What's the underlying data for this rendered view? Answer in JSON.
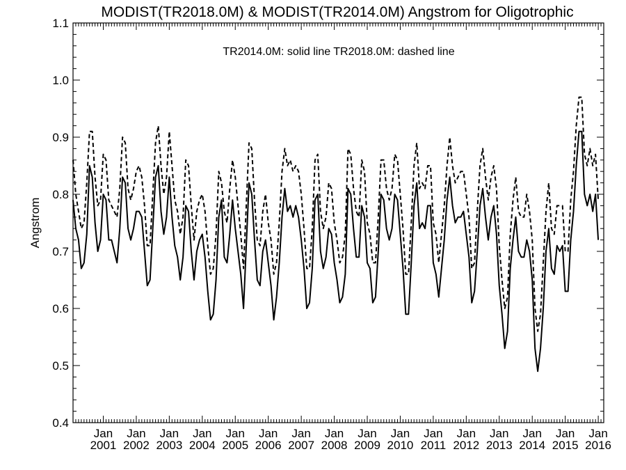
{
  "chart_data": {
    "type": "line",
    "title": "MODIST(TR2018.0M) & MODIST(TR2014.0M)  Angstrom for Oligotrophic",
    "annotation": "TR2014.0M: solid line   TR2018.0M: dashed line",
    "xlabel": "",
    "ylabel": "Angstrom",
    "ylim": [
      0.4,
      1.1
    ],
    "yticks": [
      "0.4",
      "0.5",
      "0.6",
      "0.7",
      "0.8",
      "0.9",
      "1.0",
      "1.1"
    ],
    "xlim": [
      "2000-02",
      "2016-03"
    ],
    "xtick_month": "Jan",
    "xtick_years": [
      "2001",
      "2002",
      "2003",
      "2004",
      "2005",
      "2006",
      "2007",
      "2008",
      "2009",
      "2010",
      "2011",
      "2012",
      "2013",
      "2014",
      "2015",
      "2016"
    ],
    "grid": false,
    "series": [
      {
        "name": "TR2014.0M",
        "style": "solid",
        "color": "#000000",
        "x_start": "2000-02",
        "values": [
          0.79,
          0.74,
          0.72,
          0.67,
          0.68,
          0.73,
          0.85,
          0.83,
          0.75,
          0.7,
          0.72,
          0.8,
          0.79,
          0.72,
          0.72,
          0.7,
          0.68,
          0.74,
          0.83,
          0.82,
          0.74,
          0.72,
          0.74,
          0.77,
          0.77,
          0.76,
          0.7,
          0.64,
          0.65,
          0.74,
          0.83,
          0.85,
          0.77,
          0.73,
          0.76,
          0.83,
          0.76,
          0.71,
          0.69,
          0.65,
          0.69,
          0.78,
          0.77,
          0.7,
          0.65,
          0.7,
          0.72,
          0.73,
          0.69,
          0.63,
          0.58,
          0.59,
          0.65,
          0.76,
          0.79,
          0.69,
          0.68,
          0.73,
          0.79,
          0.74,
          0.7,
          0.66,
          0.6,
          0.71,
          0.82,
          0.8,
          0.72,
          0.65,
          0.64,
          0.7,
          0.72,
          0.68,
          0.64,
          0.58,
          0.62,
          0.68,
          0.76,
          0.81,
          0.77,
          0.78,
          0.76,
          0.78,
          0.76,
          0.72,
          0.67,
          0.6,
          0.61,
          0.67,
          0.79,
          0.8,
          0.7,
          0.67,
          0.69,
          0.74,
          0.73,
          0.68,
          0.65,
          0.61,
          0.62,
          0.66,
          0.81,
          0.8,
          0.74,
          0.69,
          0.69,
          0.78,
          0.76,
          0.68,
          0.67,
          0.61,
          0.62,
          0.7,
          0.8,
          0.79,
          0.74,
          0.72,
          0.74,
          0.8,
          0.79,
          0.73,
          0.67,
          0.59,
          0.59,
          0.68,
          0.78,
          0.82,
          0.74,
          0.75,
          0.74,
          0.78,
          0.78,
          0.68,
          0.66,
          0.62,
          0.67,
          0.72,
          0.79,
          0.83,
          0.78,
          0.75,
          0.76,
          0.76,
          0.77,
          0.73,
          0.69,
          0.61,
          0.63,
          0.7,
          0.78,
          0.81,
          0.76,
          0.72,
          0.76,
          0.78,
          0.73,
          0.64,
          0.59,
          0.53,
          0.56,
          0.67,
          0.72,
          0.76,
          0.7,
          0.69,
          0.69,
          0.72,
          0.7,
          0.65,
          0.53,
          0.49,
          0.53,
          0.6,
          0.7,
          0.74,
          0.67,
          0.66,
          0.71,
          0.7,
          0.71,
          0.63,
          0.63,
          0.72,
          0.77,
          0.85,
          0.91,
          0.91,
          0.8,
          0.78,
          0.8,
          0.77,
          0.8,
          0.72
        ]
      },
      {
        "name": "TR2018.0M",
        "style": "dashed",
        "color": "#000000",
        "x_start": "2000-02",
        "values": [
          0.86,
          0.8,
          0.77,
          0.74,
          0.75,
          0.82,
          0.91,
          0.91,
          0.83,
          0.78,
          0.79,
          0.87,
          0.86,
          0.79,
          0.78,
          0.77,
          0.76,
          0.81,
          0.9,
          0.89,
          0.81,
          0.79,
          0.81,
          0.84,
          0.85,
          0.83,
          0.78,
          0.71,
          0.71,
          0.8,
          0.89,
          0.92,
          0.85,
          0.8,
          0.83,
          0.91,
          0.85,
          0.79,
          0.77,
          0.73,
          0.76,
          0.86,
          0.85,
          0.78,
          0.72,
          0.77,
          0.79,
          0.8,
          0.77,
          0.71,
          0.66,
          0.67,
          0.73,
          0.84,
          0.82,
          0.77,
          0.75,
          0.81,
          0.86,
          0.83,
          0.78,
          0.73,
          0.67,
          0.78,
          0.89,
          0.88,
          0.79,
          0.72,
          0.71,
          0.77,
          0.8,
          0.75,
          0.72,
          0.66,
          0.68,
          0.75,
          0.84,
          0.88,
          0.85,
          0.86,
          0.84,
          0.85,
          0.84,
          0.8,
          0.74,
          0.67,
          0.67,
          0.74,
          0.86,
          0.87,
          0.77,
          0.74,
          0.76,
          0.82,
          0.81,
          0.75,
          0.72,
          0.68,
          0.69,
          0.73,
          0.88,
          0.87,
          0.81,
          0.77,
          0.76,
          0.86,
          0.84,
          0.75,
          0.73,
          0.68,
          0.68,
          0.76,
          0.86,
          0.86,
          0.81,
          0.79,
          0.81,
          0.87,
          0.86,
          0.8,
          0.74,
          0.66,
          0.66,
          0.75,
          0.85,
          0.89,
          0.81,
          0.82,
          0.81,
          0.85,
          0.85,
          0.75,
          0.73,
          0.68,
          0.73,
          0.78,
          0.85,
          0.9,
          0.85,
          0.82,
          0.83,
          0.84,
          0.84,
          0.8,
          0.76,
          0.67,
          0.68,
          0.77,
          0.85,
          0.88,
          0.83,
          0.79,
          0.83,
          0.85,
          0.81,
          0.71,
          0.65,
          0.6,
          0.62,
          0.73,
          0.79,
          0.83,
          0.77,
          0.76,
          0.76,
          0.8,
          0.77,
          0.72,
          0.6,
          0.56,
          0.59,
          0.68,
          0.77,
          0.82,
          0.74,
          0.73,
          0.78,
          0.78,
          0.78,
          0.7,
          0.7,
          0.79,
          0.84,
          0.92,
          0.97,
          0.97,
          0.87,
          0.85,
          0.88,
          0.85,
          0.87,
          0.79
        ]
      }
    ]
  }
}
